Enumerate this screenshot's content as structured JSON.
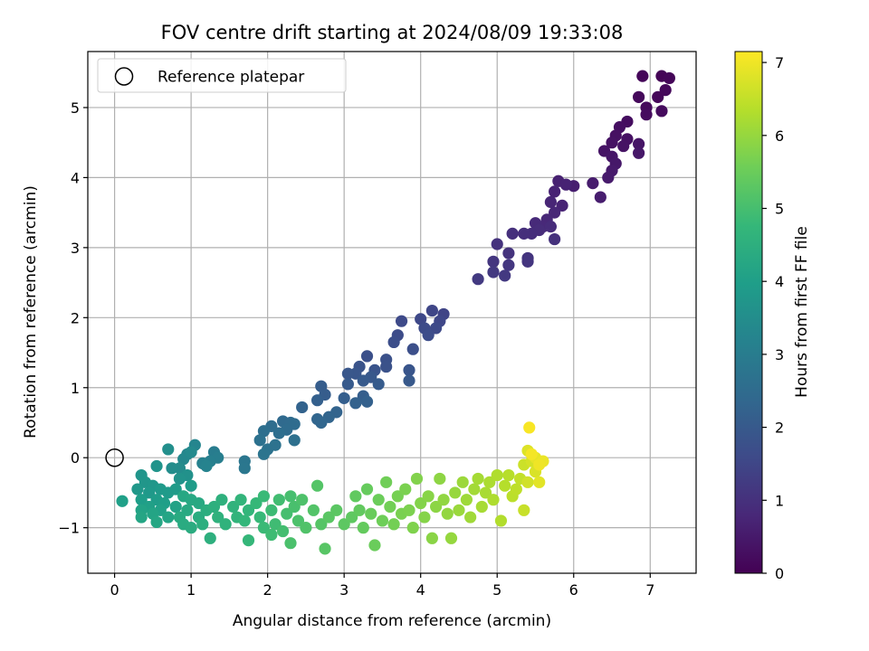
{
  "chart_data": {
    "type": "scatter",
    "title": "FOV centre drift starting at 2024/08/09 19:33:08",
    "xlabel": "Angular distance from reference (arcmin)",
    "ylabel": "Rotation from reference (arcmin)",
    "xlim": [
      -0.35,
      7.6
    ],
    "ylim": [
      -1.65,
      5.8
    ],
    "xticks": [
      0,
      1,
      2,
      3,
      4,
      5,
      6,
      7
    ],
    "yticks": [
      -1,
      0,
      1,
      2,
      3,
      4,
      5
    ],
    "ytick_labels": [
      "−1",
      "0",
      "1",
      "2",
      "3",
      "4",
      "5"
    ],
    "grid": true,
    "legend": {
      "placement": "top-left",
      "entries": [
        "Reference platepar"
      ]
    },
    "reference_point": {
      "x": 0,
      "y": 0
    },
    "colorbar": {
      "label": "Hours from first FF file",
      "colormap": "viridis",
      "range": [
        0,
        7.15
      ],
      "ticks": [
        0,
        1,
        2,
        3,
        4,
        5,
        6,
        7
      ]
    },
    "colormap_stops": [
      "#440154",
      "#482878",
      "#3e4a89",
      "#31688e",
      "#26828e",
      "#1f9e89",
      "#35b779",
      "#6ece58",
      "#b5de2b",
      "#fde725"
    ],
    "points": [
      {
        "x": 7.15,
        "y": 5.45,
        "h": 0.05
      },
      {
        "x": 7.25,
        "y": 5.42,
        "h": 0.08
      },
      {
        "x": 6.9,
        "y": 5.45,
        "h": 0.1
      },
      {
        "x": 7.1,
        "y": 5.15,
        "h": 0.12
      },
      {
        "x": 7.2,
        "y": 5.25,
        "h": 0.14
      },
      {
        "x": 6.85,
        "y": 5.15,
        "h": 0.16
      },
      {
        "x": 6.95,
        "y": 5.0,
        "h": 0.18
      },
      {
        "x": 7.15,
        "y": 4.95,
        "h": 0.2
      },
      {
        "x": 6.95,
        "y": 4.9,
        "h": 0.22
      },
      {
        "x": 6.7,
        "y": 4.8,
        "h": 0.24
      },
      {
        "x": 6.6,
        "y": 4.72,
        "h": 0.28
      },
      {
        "x": 6.55,
        "y": 4.6,
        "h": 0.3
      },
      {
        "x": 6.7,
        "y": 4.55,
        "h": 0.32
      },
      {
        "x": 6.5,
        "y": 4.5,
        "h": 0.34
      },
      {
        "x": 6.65,
        "y": 4.45,
        "h": 0.36
      },
      {
        "x": 6.4,
        "y": 4.38,
        "h": 0.38
      },
      {
        "x": 6.85,
        "y": 4.48,
        "h": 0.4
      },
      {
        "x": 6.5,
        "y": 4.3,
        "h": 0.42
      },
      {
        "x": 6.85,
        "y": 4.35,
        "h": 0.44
      },
      {
        "x": 6.55,
        "y": 4.2,
        "h": 0.46
      },
      {
        "x": 6.5,
        "y": 4.1,
        "h": 0.5
      },
      {
        "x": 6.45,
        "y": 4.0,
        "h": 0.52
      },
      {
        "x": 6.25,
        "y": 3.92,
        "h": 0.55
      },
      {
        "x": 6.35,
        "y": 3.72,
        "h": 0.58
      },
      {
        "x": 6.0,
        "y": 3.88,
        "h": 0.6
      },
      {
        "x": 5.8,
        "y": 3.95,
        "h": 0.65
      },
      {
        "x": 5.9,
        "y": 3.9,
        "h": 0.68
      },
      {
        "x": 5.75,
        "y": 3.8,
        "h": 0.7
      },
      {
        "x": 5.85,
        "y": 3.6,
        "h": 0.72
      },
      {
        "x": 5.7,
        "y": 3.65,
        "h": 0.75
      },
      {
        "x": 5.75,
        "y": 3.5,
        "h": 0.78
      },
      {
        "x": 5.65,
        "y": 3.4,
        "h": 0.8
      },
      {
        "x": 5.6,
        "y": 3.3,
        "h": 0.82
      },
      {
        "x": 5.5,
        "y": 3.35,
        "h": 0.85
      },
      {
        "x": 5.7,
        "y": 3.3,
        "h": 0.88
      },
      {
        "x": 5.55,
        "y": 3.25,
        "h": 0.9
      },
      {
        "x": 5.45,
        "y": 3.2,
        "h": 0.92
      },
      {
        "x": 5.35,
        "y": 3.2,
        "h": 0.95
      },
      {
        "x": 5.2,
        "y": 3.2,
        "h": 0.98
      },
      {
        "x": 5.75,
        "y": 3.12,
        "h": 1.0
      },
      {
        "x": 5.0,
        "y": 3.05,
        "h": 1.02
      },
      {
        "x": 5.15,
        "y": 2.92,
        "h": 1.05
      },
      {
        "x": 5.4,
        "y": 2.85,
        "h": 1.08
      },
      {
        "x": 5.4,
        "y": 2.8,
        "h": 1.1
      },
      {
        "x": 4.95,
        "y": 2.8,
        "h": 1.12
      },
      {
        "x": 5.15,
        "y": 2.75,
        "h": 1.15
      },
      {
        "x": 4.95,
        "y": 2.65,
        "h": 1.18
      },
      {
        "x": 5.1,
        "y": 2.6,
        "h": 1.2
      },
      {
        "x": 4.75,
        "y": 2.55,
        "h": 1.22
      },
      {
        "x": 4.3,
        "y": 2.05,
        "h": 1.45
      },
      {
        "x": 4.15,
        "y": 2.1,
        "h": 1.5
      },
      {
        "x": 4.25,
        "y": 1.95,
        "h": 1.52
      },
      {
        "x": 4.0,
        "y": 1.98,
        "h": 1.55
      },
      {
        "x": 3.75,
        "y": 1.95,
        "h": 1.58
      },
      {
        "x": 4.2,
        "y": 1.85,
        "h": 1.6
      },
      {
        "x": 4.05,
        "y": 1.85,
        "h": 1.62
      },
      {
        "x": 3.7,
        "y": 1.75,
        "h": 1.65
      },
      {
        "x": 4.1,
        "y": 1.75,
        "h": 1.68
      },
      {
        "x": 3.65,
        "y": 1.65,
        "h": 1.7
      },
      {
        "x": 3.9,
        "y": 1.55,
        "h": 1.72
      },
      {
        "x": 3.3,
        "y": 1.45,
        "h": 1.75
      },
      {
        "x": 3.55,
        "y": 1.4,
        "h": 1.78
      },
      {
        "x": 3.55,
        "y": 1.3,
        "h": 1.8
      },
      {
        "x": 3.2,
        "y": 1.3,
        "h": 1.82
      },
      {
        "x": 3.4,
        "y": 1.25,
        "h": 1.85
      },
      {
        "x": 3.85,
        "y": 1.25,
        "h": 1.88
      },
      {
        "x": 3.15,
        "y": 1.2,
        "h": 1.9
      },
      {
        "x": 3.05,
        "y": 1.2,
        "h": 1.92
      },
      {
        "x": 3.35,
        "y": 1.15,
        "h": 1.95
      },
      {
        "x": 3.85,
        "y": 1.1,
        "h": 1.98
      },
      {
        "x": 3.25,
        "y": 1.1,
        "h": 2.0
      },
      {
        "x": 3.05,
        "y": 1.05,
        "h": 2.02
      },
      {
        "x": 3.45,
        "y": 1.05,
        "h": 2.05
      },
      {
        "x": 2.7,
        "y": 1.02,
        "h": 2.08
      },
      {
        "x": 2.75,
        "y": 0.9,
        "h": 2.1
      },
      {
        "x": 3.25,
        "y": 0.88,
        "h": 2.12
      },
      {
        "x": 3.0,
        "y": 0.85,
        "h": 2.15
      },
      {
        "x": 2.65,
        "y": 0.82,
        "h": 2.18
      },
      {
        "x": 3.3,
        "y": 0.8,
        "h": 2.2
      },
      {
        "x": 3.15,
        "y": 0.78,
        "h": 2.22
      },
      {
        "x": 2.45,
        "y": 0.72,
        "h": 2.25
      },
      {
        "x": 2.9,
        "y": 0.65,
        "h": 2.28
      },
      {
        "x": 2.8,
        "y": 0.58,
        "h": 2.3
      },
      {
        "x": 2.65,
        "y": 0.55,
        "h": 2.32
      },
      {
        "x": 2.7,
        "y": 0.5,
        "h": 2.35
      },
      {
        "x": 2.2,
        "y": 0.52,
        "h": 2.45
      },
      {
        "x": 2.3,
        "y": 0.5,
        "h": 2.48
      },
      {
        "x": 2.35,
        "y": 0.48,
        "h": 2.5
      },
      {
        "x": 2.25,
        "y": 0.4,
        "h": 2.52
      },
      {
        "x": 2.05,
        "y": 0.45,
        "h": 2.55
      },
      {
        "x": 2.15,
        "y": 0.35,
        "h": 2.58
      },
      {
        "x": 1.95,
        "y": 0.38,
        "h": 2.6
      },
      {
        "x": 2.35,
        "y": 0.25,
        "h": 2.62
      },
      {
        "x": 1.9,
        "y": 0.25,
        "h": 2.65
      },
      {
        "x": 2.1,
        "y": 0.18,
        "h": 2.68
      },
      {
        "x": 2.0,
        "y": 0.12,
        "h": 2.7
      },
      {
        "x": 1.95,
        "y": 0.05,
        "h": 2.75
      },
      {
        "x": 1.7,
        "y": -0.05,
        "h": 2.8
      },
      {
        "x": 1.7,
        "y": -0.15,
        "h": 2.85
      },
      {
        "x": 1.3,
        "y": 0.08,
        "h": 3.0
      },
      {
        "x": 1.35,
        "y": 0.0,
        "h": 3.05
      },
      {
        "x": 1.25,
        "y": -0.05,
        "h": 3.1
      },
      {
        "x": 1.15,
        "y": -0.08,
        "h": 3.15
      },
      {
        "x": 1.2,
        "y": -0.12,
        "h": 3.2
      },
      {
        "x": 1.05,
        "y": 0.18,
        "h": 3.25
      },
      {
        "x": 0.95,
        "y": 0.05,
        "h": 3.3
      },
      {
        "x": 0.9,
        "y": -0.02,
        "h": 3.35
      },
      {
        "x": 1.0,
        "y": 0.08,
        "h": 3.4
      },
      {
        "x": 0.85,
        "y": -0.15,
        "h": 3.45
      },
      {
        "x": 0.75,
        "y": -0.15,
        "h": 3.5
      },
      {
        "x": 0.7,
        "y": 0.12,
        "h": 3.55
      },
      {
        "x": 0.95,
        "y": -0.25,
        "h": 3.6
      },
      {
        "x": 0.85,
        "y": -0.3,
        "h": 3.65
      },
      {
        "x": 0.55,
        "y": -0.12,
        "h": 3.7
      },
      {
        "x": 0.35,
        "y": -0.25,
        "h": 3.72
      },
      {
        "x": 0.4,
        "y": -0.35,
        "h": 3.75
      },
      {
        "x": 0.5,
        "y": -0.4,
        "h": 3.78
      },
      {
        "x": 0.3,
        "y": -0.45,
        "h": 3.8
      },
      {
        "x": 0.45,
        "y": -0.5,
        "h": 3.82
      },
      {
        "x": 0.6,
        "y": -0.45,
        "h": 3.85
      },
      {
        "x": 0.7,
        "y": -0.5,
        "h": 3.88
      },
      {
        "x": 0.8,
        "y": -0.45,
        "h": 3.9
      },
      {
        "x": 1.0,
        "y": -0.4,
        "h": 3.92
      },
      {
        "x": 0.55,
        "y": -0.6,
        "h": 3.95
      },
      {
        "x": 0.35,
        "y": -0.6,
        "h": 3.98
      },
      {
        "x": 0.65,
        "y": -0.65,
        "h": 4.0
      },
      {
        "x": 0.1,
        "y": -0.62,
        "h": 4.02
      },
      {
        "x": 0.45,
        "y": -0.7,
        "h": 4.05
      },
      {
        "x": 0.6,
        "y": -0.75,
        "h": 4.08
      },
      {
        "x": 0.8,
        "y": -0.7,
        "h": 4.1
      },
      {
        "x": 0.35,
        "y": -0.75,
        "h": 4.12
      },
      {
        "x": 0.5,
        "y": -0.8,
        "h": 4.15
      },
      {
        "x": 0.7,
        "y": -0.85,
        "h": 4.18
      },
      {
        "x": 0.35,
        "y": -0.85,
        "h": 4.2
      },
      {
        "x": 0.55,
        "y": -0.92,
        "h": 4.22
      },
      {
        "x": 0.9,
        "y": -0.55,
        "h": 4.25
      },
      {
        "x": 1.0,
        "y": -0.6,
        "h": 4.28
      },
      {
        "x": 1.1,
        "y": -0.65,
        "h": 4.3
      },
      {
        "x": 0.95,
        "y": -0.75,
        "h": 4.32
      },
      {
        "x": 0.85,
        "y": -0.85,
        "h": 4.35
      },
      {
        "x": 0.9,
        "y": -0.95,
        "h": 4.38
      },
      {
        "x": 1.0,
        "y": -1.0,
        "h": 4.4
      },
      {
        "x": 1.1,
        "y": -0.85,
        "h": 4.42
      },
      {
        "x": 1.2,
        "y": -0.75,
        "h": 4.45
      },
      {
        "x": 1.15,
        "y": -0.95,
        "h": 4.48
      },
      {
        "x": 1.3,
        "y": -0.7,
        "h": 4.5
      },
      {
        "x": 1.25,
        "y": -1.15,
        "h": 4.52
      },
      {
        "x": 1.4,
        "y": -0.6,
        "h": 4.55
      },
      {
        "x": 1.35,
        "y": -0.85,
        "h": 4.58
      },
      {
        "x": 1.45,
        "y": -0.95,
        "h": 4.6
      },
      {
        "x": 1.55,
        "y": -0.7,
        "h": 4.62
      },
      {
        "x": 1.6,
        "y": -0.85,
        "h": 4.65
      },
      {
        "x": 1.65,
        "y": -0.6,
        "h": 4.68
      },
      {
        "x": 1.75,
        "y": -0.75,
        "h": 4.7
      },
      {
        "x": 1.7,
        "y": -0.9,
        "h": 4.72
      },
      {
        "x": 1.75,
        "y": -1.18,
        "h": 4.75
      },
      {
        "x": 1.85,
        "y": -0.65,
        "h": 4.78
      },
      {
        "x": 1.9,
        "y": -0.85,
        "h": 4.8
      },
      {
        "x": 1.95,
        "y": -0.55,
        "h": 4.82
      },
      {
        "x": 1.95,
        "y": -1.0,
        "h": 4.85
      },
      {
        "x": 2.05,
        "y": -0.75,
        "h": 4.88
      },
      {
        "x": 2.05,
        "y": -1.1,
        "h": 4.9
      },
      {
        "x": 2.1,
        "y": -0.95,
        "h": 4.92
      },
      {
        "x": 2.15,
        "y": -0.6,
        "h": 4.95
      },
      {
        "x": 2.2,
        "y": -1.05,
        "h": 4.98
      },
      {
        "x": 2.25,
        "y": -0.8,
        "h": 5.0
      },
      {
        "x": 2.3,
        "y": -0.55,
        "h": 5.02
      },
      {
        "x": 2.35,
        "y": -0.7,
        "h": 5.05
      },
      {
        "x": 2.3,
        "y": -1.22,
        "h": 5.08
      },
      {
        "x": 2.4,
        "y": -0.9,
        "h": 5.1
      },
      {
        "x": 2.45,
        "y": -0.6,
        "h": 5.12
      },
      {
        "x": 2.5,
        "y": -1.0,
        "h": 5.15
      },
      {
        "x": 2.6,
        "y": -0.75,
        "h": 5.18
      },
      {
        "x": 2.65,
        "y": -0.4,
        "h": 5.2
      },
      {
        "x": 2.7,
        "y": -0.95,
        "h": 5.22
      },
      {
        "x": 2.75,
        "y": -1.3,
        "h": 5.25
      },
      {
        "x": 2.8,
        "y": -0.85,
        "h": 5.28
      },
      {
        "x": 2.9,
        "y": -0.75,
        "h": 5.3
      },
      {
        "x": 3.0,
        "y": -0.95,
        "h": 5.32
      },
      {
        "x": 3.1,
        "y": -0.85,
        "h": 5.35
      },
      {
        "x": 3.15,
        "y": -0.55,
        "h": 5.38
      },
      {
        "x": 3.2,
        "y": -0.75,
        "h": 5.4
      },
      {
        "x": 3.25,
        "y": -1.0,
        "h": 5.42
      },
      {
        "x": 3.3,
        "y": -0.45,
        "h": 5.45
      },
      {
        "x": 3.35,
        "y": -0.8,
        "h": 5.48
      },
      {
        "x": 3.4,
        "y": -1.25,
        "h": 5.5
      },
      {
        "x": 3.45,
        "y": -0.6,
        "h": 5.52
      },
      {
        "x": 3.5,
        "y": -0.9,
        "h": 5.55
      },
      {
        "x": 3.55,
        "y": -0.35,
        "h": 5.58
      },
      {
        "x": 3.6,
        "y": -0.7,
        "h": 5.6
      },
      {
        "x": 3.65,
        "y": -0.95,
        "h": 5.62
      },
      {
        "x": 3.7,
        "y": -0.55,
        "h": 5.65
      },
      {
        "x": 3.75,
        "y": -0.8,
        "h": 5.68
      },
      {
        "x": 3.8,
        "y": -0.45,
        "h": 5.7
      },
      {
        "x": 3.85,
        "y": -0.75,
        "h": 5.72
      },
      {
        "x": 3.9,
        "y": -1.0,
        "h": 5.75
      },
      {
        "x": 3.95,
        "y": -0.3,
        "h": 5.78
      },
      {
        "x": 4.0,
        "y": -0.65,
        "h": 5.8
      },
      {
        "x": 4.05,
        "y": -0.85,
        "h": 5.82
      },
      {
        "x": 4.1,
        "y": -0.55,
        "h": 5.85
      },
      {
        "x": 4.15,
        "y": -1.15,
        "h": 5.88
      },
      {
        "x": 4.2,
        "y": -0.7,
        "h": 5.9
      },
      {
        "x": 4.25,
        "y": -0.3,
        "h": 5.92
      },
      {
        "x": 4.3,
        "y": -0.6,
        "h": 5.95
      },
      {
        "x": 4.35,
        "y": -0.8,
        "h": 5.98
      },
      {
        "x": 4.4,
        "y": -1.15,
        "h": 6.0
      },
      {
        "x": 4.45,
        "y": -0.5,
        "h": 6.02
      },
      {
        "x": 4.5,
        "y": -0.75,
        "h": 6.05
      },
      {
        "x": 4.55,
        "y": -0.35,
        "h": 6.08
      },
      {
        "x": 4.6,
        "y": -0.6,
        "h": 6.1
      },
      {
        "x": 4.65,
        "y": -0.85,
        "h": 6.12
      },
      {
        "x": 4.7,
        "y": -0.45,
        "h": 6.15
      },
      {
        "x": 4.75,
        "y": -0.3,
        "h": 6.18
      },
      {
        "x": 4.8,
        "y": -0.7,
        "h": 6.2
      },
      {
        "x": 4.85,
        "y": -0.5,
        "h": 6.22
      },
      {
        "x": 4.9,
        "y": -0.35,
        "h": 6.25
      },
      {
        "x": 4.95,
        "y": -0.6,
        "h": 6.28
      },
      {
        "x": 5.0,
        "y": -0.25,
        "h": 6.3
      },
      {
        "x": 5.05,
        "y": -0.9,
        "h": 6.32
      },
      {
        "x": 5.1,
        "y": -0.4,
        "h": 6.35
      },
      {
        "x": 5.15,
        "y": -0.25,
        "h": 6.38
      },
      {
        "x": 5.2,
        "y": -0.55,
        "h": 6.42
      },
      {
        "x": 5.25,
        "y": -0.45,
        "h": 6.45
      },
      {
        "x": 5.3,
        "y": -0.3,
        "h": 6.5
      },
      {
        "x": 5.35,
        "y": -0.75,
        "h": 6.55
      },
      {
        "x": 5.35,
        "y": -0.1,
        "h": 6.6
      },
      {
        "x": 5.4,
        "y": -0.35,
        "h": 6.65
      },
      {
        "x": 5.45,
        "y": -0.05,
        "h": 6.7
      },
      {
        "x": 5.5,
        "y": -0.2,
        "h": 6.75
      },
      {
        "x": 5.4,
        "y": 0.1,
        "h": 6.8
      },
      {
        "x": 5.55,
        "y": -0.35,
        "h": 6.85
      },
      {
        "x": 5.5,
        "y": 0.0,
        "h": 6.9
      },
      {
        "x": 5.6,
        "y": -0.05,
        "h": 6.95
      },
      {
        "x": 5.55,
        "y": -0.1,
        "h": 7.0
      },
      {
        "x": 5.45,
        "y": 0.05,
        "h": 7.05
      },
      {
        "x": 5.42,
        "y": 0.43,
        "h": 7.1
      }
    ]
  }
}
